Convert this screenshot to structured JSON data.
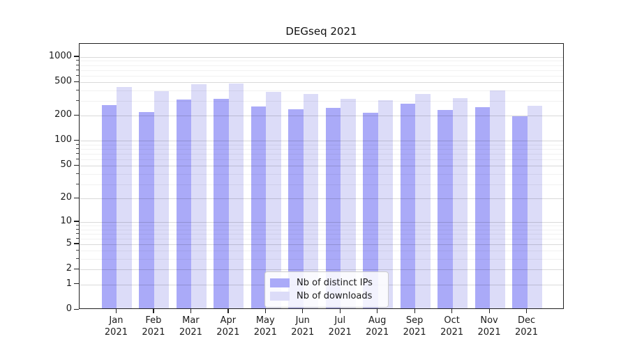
{
  "title": "DEGseq 2021",
  "colors": {
    "ips_bar": "#aaaaf8",
    "downloads_bar": "#dcdcf8",
    "axis": "#1f1f1f",
    "grid_major": "rgba(0,0,0,0.15)",
    "grid_minor": "rgba(0,0,0,0.055)",
    "legend_border": "#cccccc"
  },
  "chart_data": {
    "type": "bar",
    "title": "DEGseq 2021",
    "categories": [
      "Jan 2021",
      "Feb 2021",
      "Mar 2021",
      "Apr 2021",
      "May 2021",
      "Jun 2021",
      "Jul 2021",
      "Aug 2021",
      "Sep 2021",
      "Oct 2021",
      "Nov 2021",
      "Dec 2021"
    ],
    "x_tick_line1": [
      "Jan",
      "Feb",
      "Mar",
      "Apr",
      "May",
      "Jun",
      "Jul",
      "Aug",
      "Sep",
      "Oct",
      "Nov",
      "Dec"
    ],
    "x_tick_line2": "2021",
    "series": [
      {
        "name": "Nb of distinct IPs",
        "color": "#aaaaf8",
        "values": [
          258,
          213,
          301,
          307,
          248,
          230,
          239,
          209,
          267,
          225,
          244,
          191
        ]
      },
      {
        "name": "Nb of downloads",
        "color": "#dcdcf8",
        "values": [
          425,
          379,
          459,
          467,
          372,
          351,
          307,
          296,
          347,
          313,
          387,
          254
        ]
      }
    ],
    "y_scale": "log1p",
    "y_ticks": [
      0,
      1,
      2,
      5,
      10,
      20,
      50,
      100,
      200,
      500,
      1000
    ],
    "y_minor_ticks": [
      3,
      4,
      6,
      7,
      8,
      9,
      30,
      40,
      60,
      70,
      80,
      90,
      300,
      400,
      600,
      700,
      800,
      900
    ],
    "ylim": [
      0,
      1435
    ],
    "grid": true,
    "legend_position": "lower center"
  }
}
